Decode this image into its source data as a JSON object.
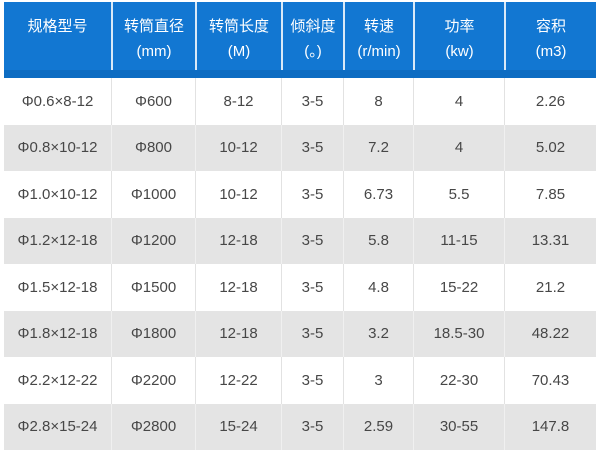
{
  "colors": {
    "header_bg": "#1277d2",
    "header_band": "#0d6cc2",
    "header_text": "#ffffff",
    "header_divider": "#d9e9f7",
    "row_bg": "#ffffff",
    "row_alt_bg": "#e4e4e4",
    "body_text": "#474747",
    "body_divider": "#e2e2e2"
  },
  "chart_data": {
    "type": "table",
    "title": "",
    "columns": [
      {
        "label": "规格型号",
        "unit": ""
      },
      {
        "label": "转筒直径",
        "unit": "(mm)"
      },
      {
        "label": "转筒长度",
        "unit": "(M)"
      },
      {
        "label": "倾斜度",
        "unit": "(。)"
      },
      {
        "label": "转速",
        "unit": "(r/min)"
      },
      {
        "label": "功率",
        "unit": "(kw)"
      },
      {
        "label": "容积",
        "unit": "(m3)"
      }
    ],
    "rows": [
      [
        "Φ0.6×8-12",
        "Φ600",
        "8-12",
        "3-5",
        "8",
        "4",
        "2.26"
      ],
      [
        "Φ0.8×10-12",
        "Φ800",
        "10-12",
        "3-5",
        "7.2",
        "4",
        "5.02"
      ],
      [
        "Φ1.0×10-12",
        "Φ1000",
        "10-12",
        "3-5",
        "6.73",
        "5.5",
        "7.85"
      ],
      [
        "Φ1.2×12-18",
        "Φ1200",
        "12-18",
        "3-5",
        "5.8",
        "11-15",
        "13.31"
      ],
      [
        "Φ1.5×12-18",
        "Φ1500",
        "12-18",
        "3-5",
        "4.8",
        "15-22",
        "21.2"
      ],
      [
        "Φ1.8×12-18",
        "Φ1800",
        "12-18",
        "3-5",
        "3.2",
        "18.5-30",
        "48.22"
      ],
      [
        "Φ2.2×12-22",
        "Φ2200",
        "12-22",
        "3-5",
        "3",
        "22-30",
        "70.43"
      ],
      [
        "Φ2.8×15-24",
        "Φ2800",
        "15-24",
        "3-5",
        "2.59",
        "30-55",
        "147.8"
      ]
    ]
  }
}
